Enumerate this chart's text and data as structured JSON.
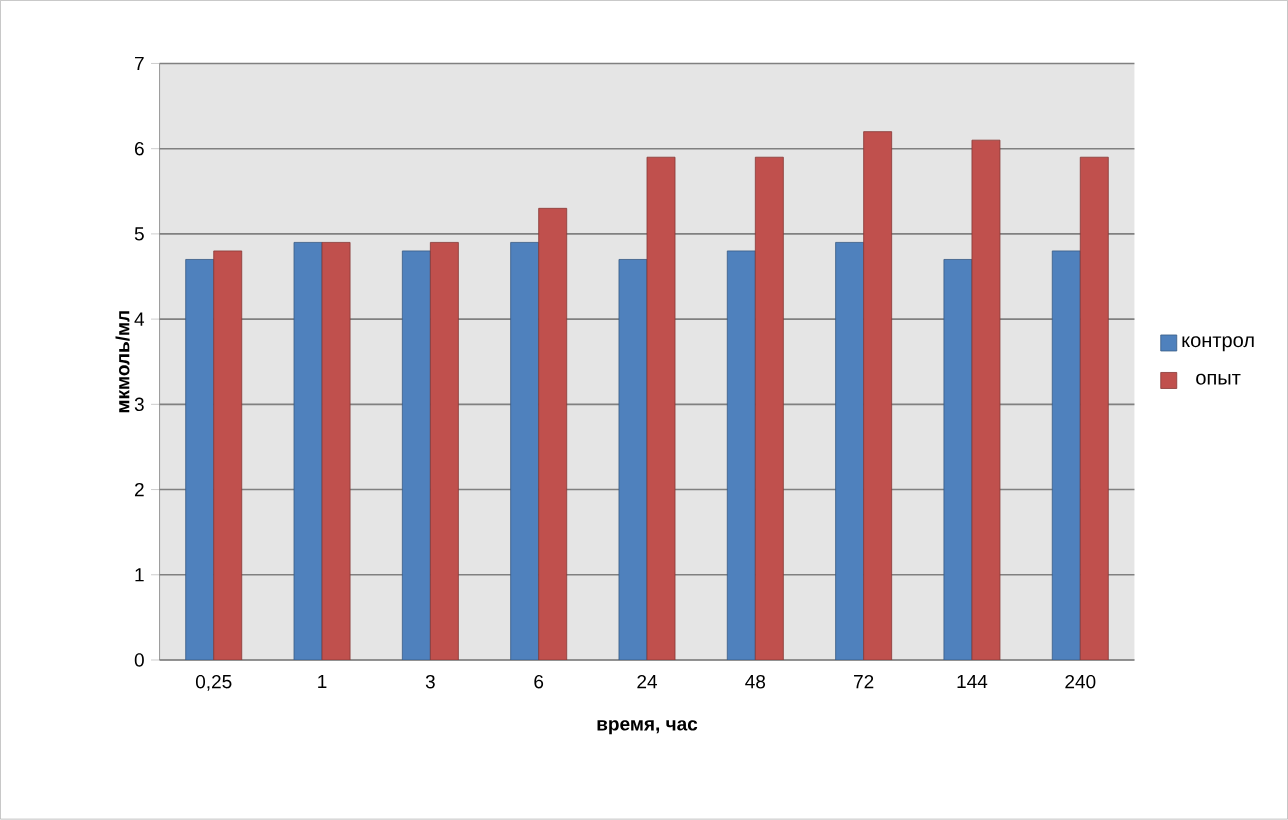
{
  "chart_data": {
    "type": "bar",
    "xlabel": "время, час",
    "ylabel": "мкмоль/мл",
    "categories": [
      "0,25",
      "1",
      "3",
      "6",
      "24",
      "48",
      "72",
      "144",
      "240"
    ],
    "series": [
      {
        "name": "контрол",
        "color": "#4f81bd",
        "values": [
          4.7,
          4.9,
          4.8,
          4.9,
          4.7,
          4.8,
          4.9,
          4.7,
          4.8
        ]
      },
      {
        "name": "опыт",
        "color": "#c0504d",
        "values": [
          4.8,
          4.9,
          4.9,
          5.3,
          5.9,
          5.9,
          6.2,
          6.1,
          5.9
        ]
      }
    ],
    "ylim": [
      0,
      7
    ],
    "yticks": [
      0,
      1,
      2,
      3,
      4,
      5,
      6,
      7
    ],
    "grid": "y",
    "legend": "right"
  }
}
